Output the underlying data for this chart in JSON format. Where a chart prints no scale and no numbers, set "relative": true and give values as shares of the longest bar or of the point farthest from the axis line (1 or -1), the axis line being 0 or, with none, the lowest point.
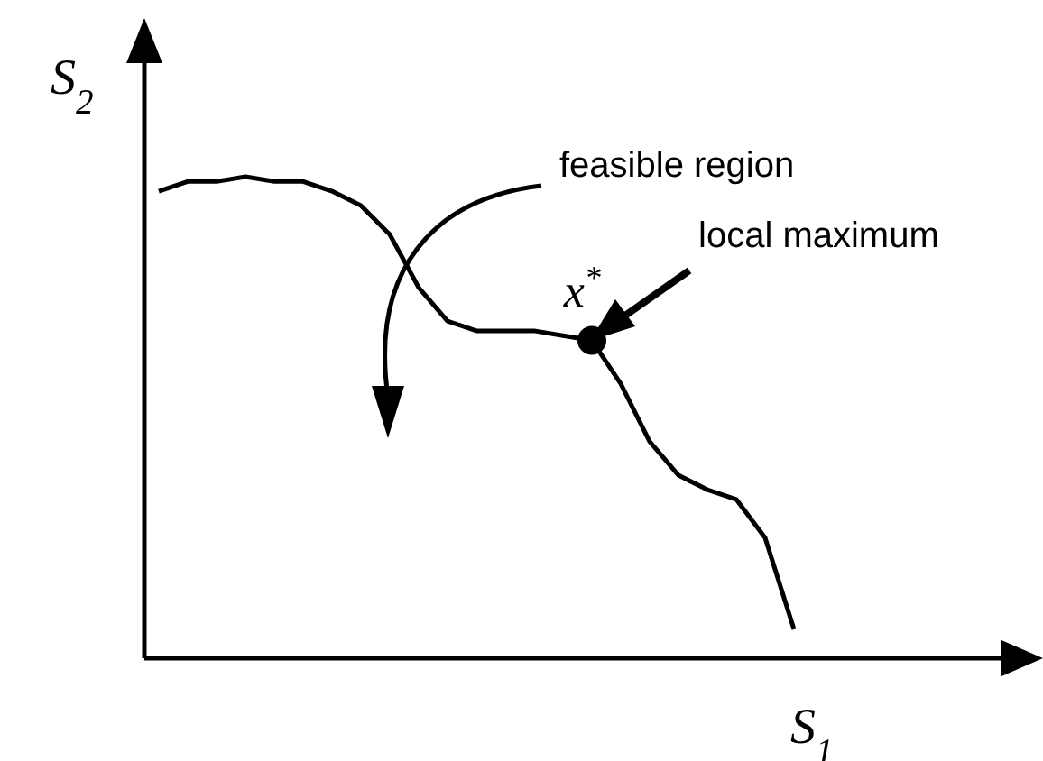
{
  "chart_data": {
    "type": "line",
    "relative": true,
    "xlabel": "S$_{1}$",
    "ylabel": "S$_{2}$",
    "categories": [
      null,
      null,
      null,
      null,
      null,
      null,
      null,
      null,
      null,
      null,
      null,
      null,
      null,
      null,
      null,
      null,
      null,
      null,
      null,
      null,
      null,
      null,
      null
    ],
    "series": [
      {
        "color": "#000000",
        "values": [
          0.97,
          0.99,
          0.99,
          1,
          0.99,
          0.99,
          0.97,
          0.94,
          0.88,
          0.77,
          0.7,
          0.68,
          0.68,
          0.68,
          0.67,
          0.66,
          0.57,
          0.45,
          0.38,
          0.35,
          0.33,
          0.25,
          0.06
        ]
      }
    ],
    "annotations": [
      "feasible region",
      "local maximum",
      "x$^{*}$"
    ]
  }
}
